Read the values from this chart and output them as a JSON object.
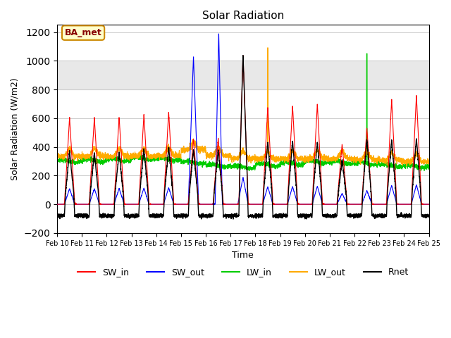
{
  "title": "Solar Radiation",
  "xlabel": "Time",
  "ylabel": "Solar Radiation (W/m2)",
  "ylim": [
    -200,
    1250
  ],
  "yticks": [
    -200,
    0,
    200,
    400,
    600,
    800,
    1000,
    1200
  ],
  "date_labels": [
    "Feb 10",
    "Feb 11",
    "Feb 12",
    "Feb 13",
    "Feb 14",
    "Feb 15",
    "Feb 16",
    "Feb 17",
    "Feb 18",
    "Feb 19",
    "Feb 20",
    "Feb 21",
    "Feb 22",
    "Feb 23",
    "Feb 24",
    "Feb 25"
  ],
  "legend_labels": [
    "SW_in",
    "SW_out",
    "LW_in",
    "LW_out",
    "Rnet"
  ],
  "legend_colors": [
    "#ff0000",
    "#0000ff",
    "#00cc00",
    "#ffaa00",
    "#000000"
  ],
  "annotation_text": "BA_met",
  "annotation_box_color": "#ffffcc",
  "annotation_border_color": "#cc8800",
  "colors": {
    "sw_in": "#ff0000",
    "sw_out": "#0000ff",
    "lw_in": "#00cc00",
    "lw_out": "#ffaa00",
    "rnet": "#000000"
  },
  "shaded_region": [
    800,
    1000
  ],
  "n_days": 15,
  "pts_per_day": 288,
  "figsize": [
    6.4,
    4.8
  ],
  "dpi": 100
}
